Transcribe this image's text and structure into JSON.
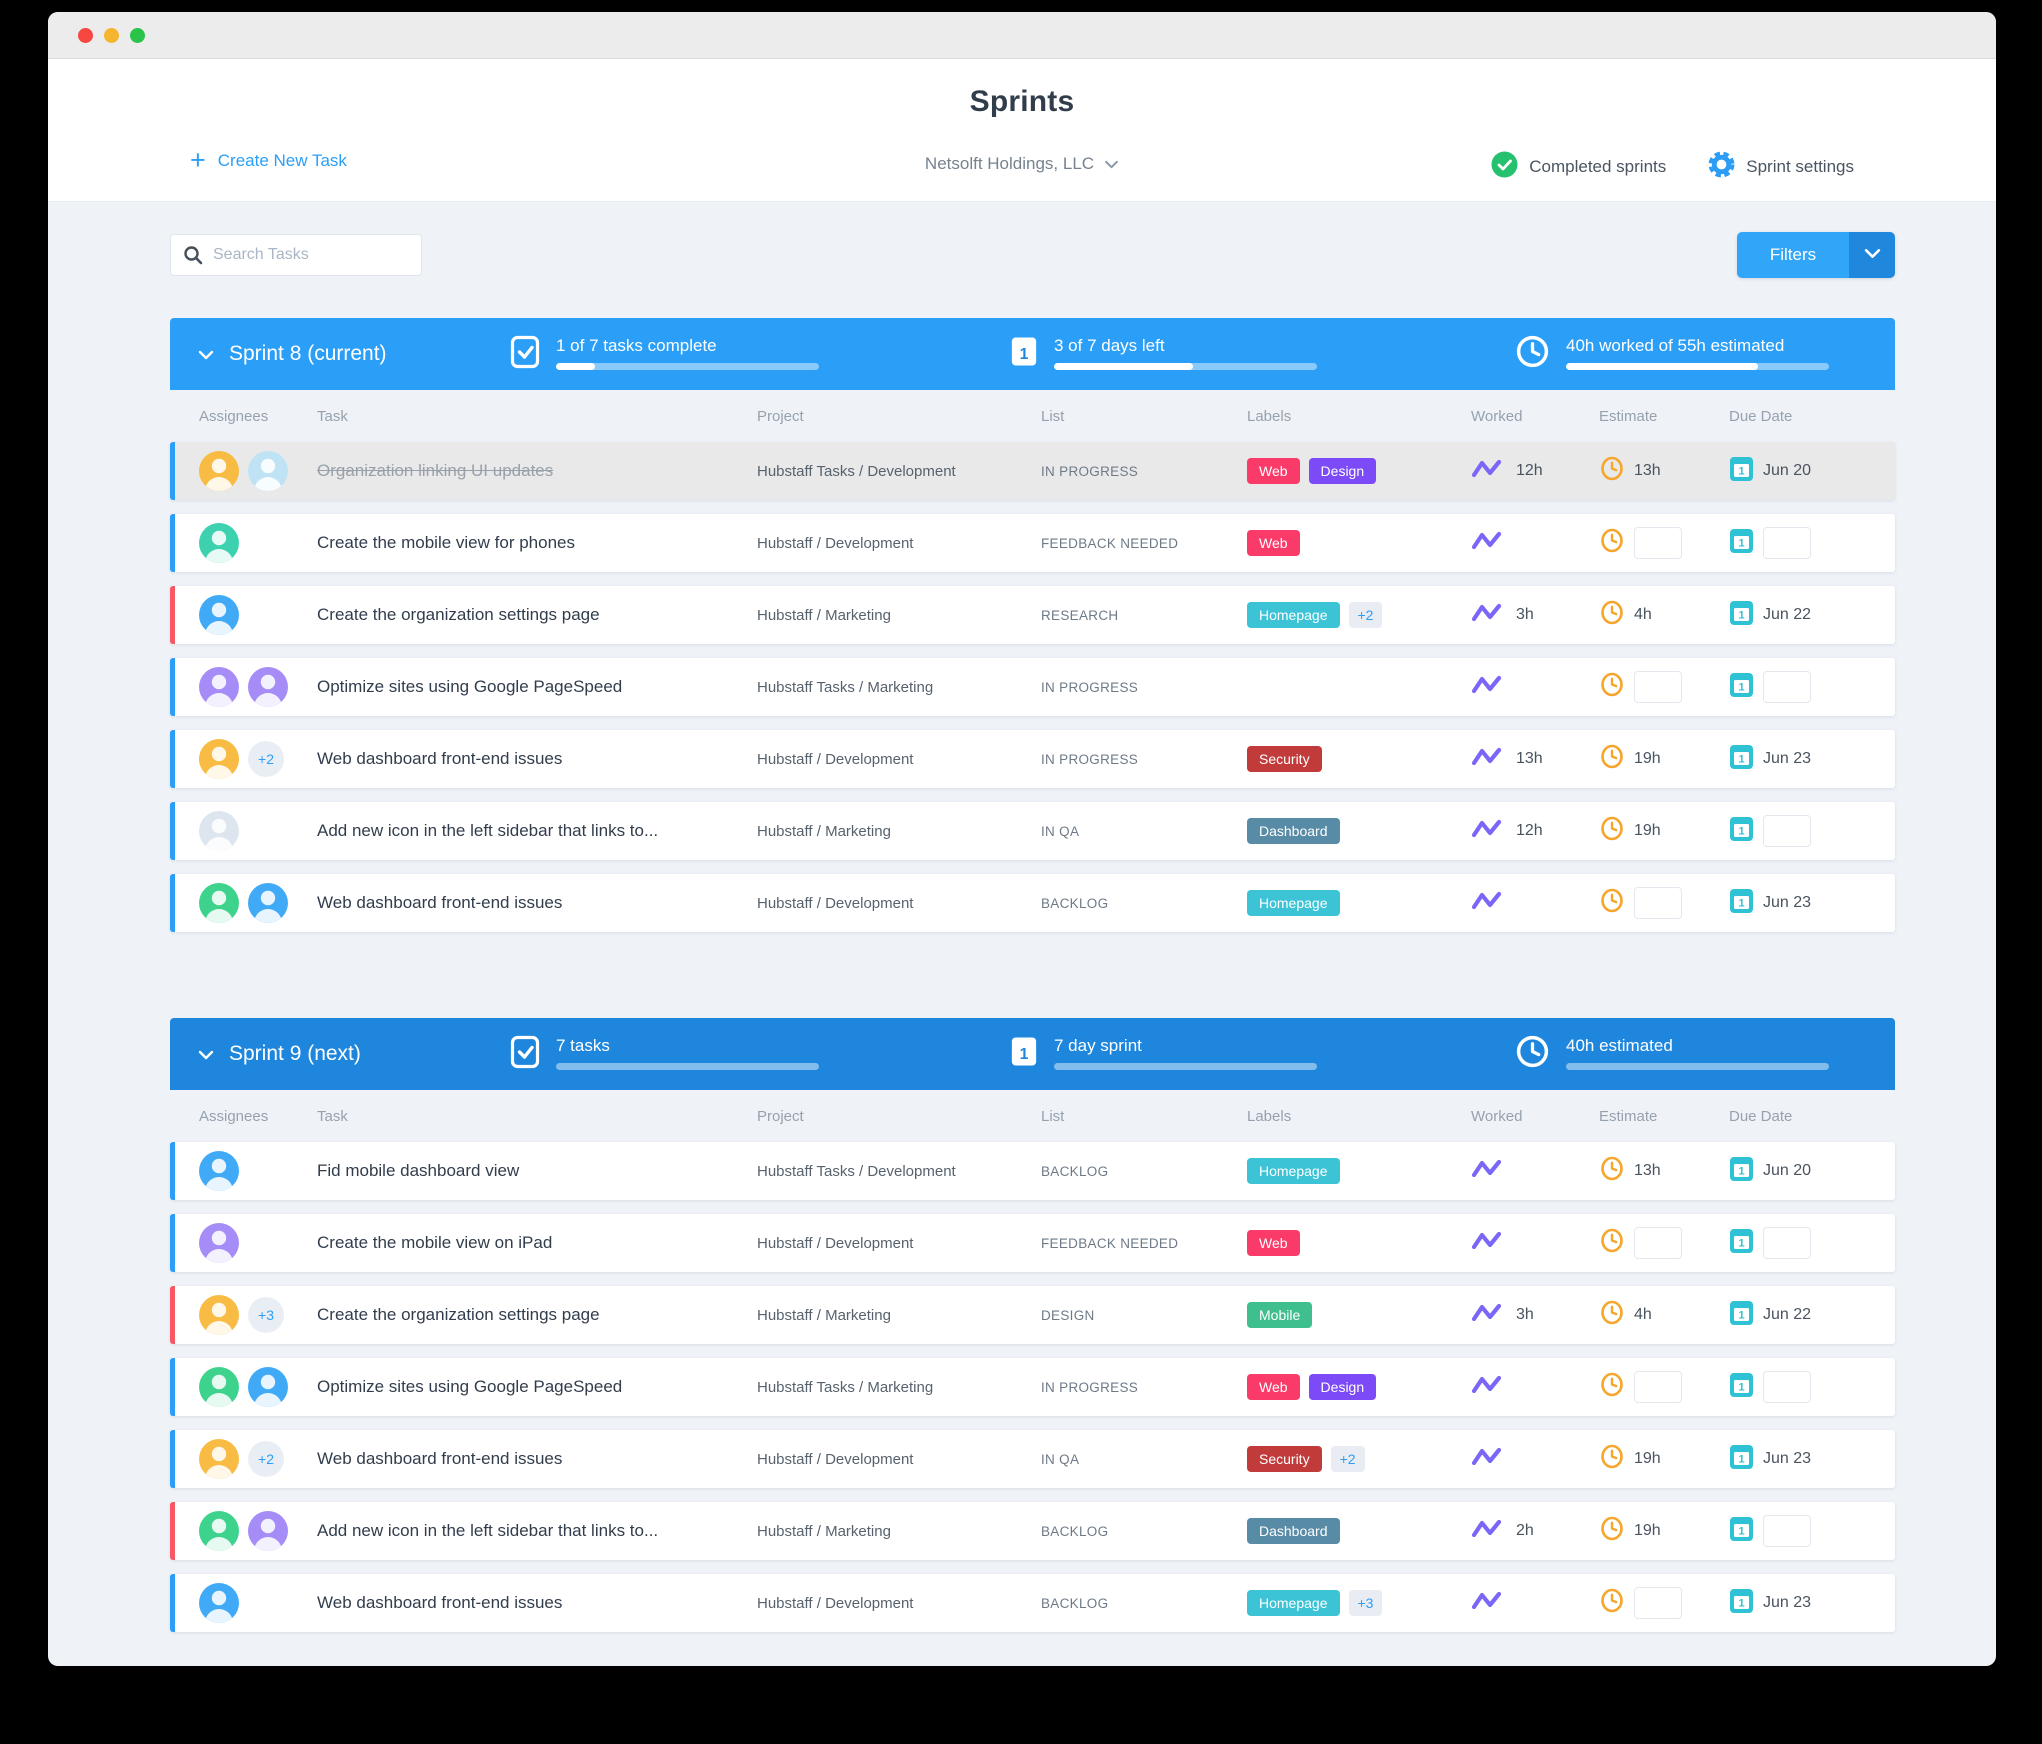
{
  "header": {
    "title": "Sprints",
    "org_name": "Netsolft Holdings, LLC",
    "create_task_label": "Create New Task",
    "completed_sprints_label": "Completed sprints",
    "sprint_settings_label": "Sprint settings"
  },
  "toolbar": {
    "search_placeholder": "Search Tasks",
    "filters_label": "Filters"
  },
  "columns": [
    "Assignees",
    "Task",
    "Project",
    "List",
    "Labels",
    "Worked",
    "Estimate",
    "Due Date"
  ],
  "accent_colors": {
    "blue": "#2b9ff7",
    "red": "#f65864"
  },
  "sprints": [
    {
      "title": "Sprint 8 (current)",
      "color": "#2b9ff7",
      "stats": [
        {
          "icon": "checkbox-icon",
          "text": "1 of 7 tasks complete",
          "progress": 15
        },
        {
          "icon": "calendar-icon",
          "text": "3 of 7 days left",
          "progress": 53
        },
        {
          "icon": "clock-icon",
          "text": "40h worked of 55h estimated",
          "progress": 73
        }
      ],
      "tasks": [
        {
          "completed": true,
          "accent": "#2b9ff7",
          "avatars": [
            "#f8bb43",
            "#bfe2f5"
          ],
          "extra_assignees": null,
          "task": "Organization linking UI updates",
          "project": "Hubstaff Tasks / Development",
          "list": "IN PROGRESS",
          "labels": [
            {
              "text": "Web",
              "color": "#fa3b69"
            },
            {
              "text": "Design",
              "color": "#7c4bf7"
            }
          ],
          "extra_labels": null,
          "worked": "12h",
          "estimate": "13h",
          "due": "Jun 20"
        },
        {
          "completed": false,
          "accent": "#2b9ff7",
          "avatars": [
            "#3ed1b0"
          ],
          "extra_assignees": null,
          "task": "Create the mobile view for phones",
          "project": "Hubstaff / Development",
          "list": "FEEDBACK NEEDED",
          "labels": [
            {
              "text": "Web",
              "color": "#fa3b69"
            }
          ],
          "extra_labels": null,
          "worked": "",
          "estimate": "",
          "due": ""
        },
        {
          "completed": false,
          "accent": "#f65864",
          "avatars": [
            "#41aaf7"
          ],
          "extra_assignees": null,
          "task": "Create the organization settings page",
          "project": "Hubstaff / Marketing",
          "list": "RESEARCH",
          "labels": [
            {
              "text": "Homepage",
              "color": "#3cc3d5"
            }
          ],
          "extra_labels": "+2",
          "worked": "3h",
          "estimate": "4h",
          "due": "Jun 22"
        },
        {
          "completed": false,
          "accent": "#2b9ff7",
          "avatars": [
            "#a58cf7",
            "#a58cf7"
          ],
          "extra_assignees": null,
          "task": "Optimize sites using Google PageSpeed",
          "project": "Hubstaff Tasks / Marketing",
          "list": "IN PROGRESS",
          "labels": [],
          "extra_labels": null,
          "worked": "",
          "estimate": "",
          "due": ""
        },
        {
          "completed": false,
          "accent": "#2b9ff7",
          "avatars": [
            "#f8bb43"
          ],
          "extra_assignees": "+2",
          "task": "Web dashboard front-end issues",
          "project": "Hubstaff / Development",
          "list": "IN PROGRESS",
          "labels": [
            {
              "text": "Security",
              "color": "#c23b3b"
            }
          ],
          "extra_labels": null,
          "worked": "13h",
          "estimate": "19h",
          "due": "Jun 23"
        },
        {
          "completed": false,
          "accent": "#2b9ff7",
          "avatars": [
            "#dde6ee"
          ],
          "extra_assignees": null,
          "task": "Add new icon in the left sidebar that links to...",
          "project": "Hubstaff / Marketing",
          "list": "IN QA",
          "labels": [
            {
              "text": "Dashboard",
              "color": "#578ba6"
            }
          ],
          "extra_labels": null,
          "worked": "12h",
          "estimate": "19h",
          "due": ""
        },
        {
          "completed": false,
          "accent": "#2b9ff7",
          "avatars": [
            "#3ed38c",
            "#41aaf7"
          ],
          "extra_assignees": null,
          "task": "Web dashboard front-end issues",
          "project": "Hubstaff / Development",
          "list": "BACKLOG",
          "labels": [
            {
              "text": "Homepage",
              "color": "#3cc3d5"
            }
          ],
          "extra_labels": null,
          "worked": "",
          "estimate": "",
          "due": "Jun 23"
        }
      ]
    },
    {
      "title": "Sprint 9 (next)",
      "color": "#1e87dd",
      "stats": [
        {
          "icon": "checkbox-icon",
          "text": "7 tasks",
          "progress": 0
        },
        {
          "icon": "calendar-icon",
          "text": "7 day sprint",
          "progress": 0
        },
        {
          "icon": "clock-icon",
          "text": "40h estimated",
          "progress": 0
        }
      ],
      "tasks": [
        {
          "completed": false,
          "accent": "#2b9ff7",
          "avatars": [
            "#41aaf7"
          ],
          "extra_assignees": null,
          "task": "Fid mobile dashboard view",
          "project": "Hubstaff Tasks / Development",
          "list": "BACKLOG",
          "labels": [
            {
              "text": "Homepage",
              "color": "#3cc3d5"
            }
          ],
          "extra_labels": null,
          "worked": "",
          "estimate": "13h",
          "due": "Jun 20"
        },
        {
          "completed": false,
          "accent": "#2b9ff7",
          "avatars": [
            "#a58cf7"
          ],
          "extra_assignees": null,
          "task": "Create the mobile view on iPad",
          "project": "Hubstaff / Development",
          "list": "FEEDBACK NEEDED",
          "labels": [
            {
              "text": "Web",
              "color": "#fa3b69"
            }
          ],
          "extra_labels": null,
          "worked": "",
          "estimate": "",
          "due": ""
        },
        {
          "completed": false,
          "accent": "#f65864",
          "avatars": [
            "#f8bb43"
          ],
          "extra_assignees": "+3",
          "task": "Create the organization settings page",
          "project": "Hubstaff / Marketing",
          "list": "DESIGN",
          "labels": [
            {
              "text": "Mobile",
              "color": "#3fbe8e"
            }
          ],
          "extra_labels": null,
          "worked": "3h",
          "estimate": "4h",
          "due": "Jun 22"
        },
        {
          "completed": false,
          "accent": "#2b9ff7",
          "avatars": [
            "#3ed38c",
            "#41aaf7"
          ],
          "extra_assignees": null,
          "task": "Optimize sites using Google PageSpeed",
          "project": "Hubstaff Tasks / Marketing",
          "list": "IN PROGRESS",
          "labels": [
            {
              "text": "Web",
              "color": "#fa3b69"
            },
            {
              "text": "Design",
              "color": "#7c4bf7"
            }
          ],
          "extra_labels": null,
          "worked": "",
          "estimate": "",
          "due": ""
        },
        {
          "completed": false,
          "accent": "#2b9ff7",
          "avatars": [
            "#f8bb43"
          ],
          "extra_assignees": "+2",
          "task": "Web dashboard front-end issues",
          "project": "Hubstaff / Development",
          "list": "IN QA",
          "labels": [
            {
              "text": "Security",
              "color": "#c23b3b"
            }
          ],
          "extra_labels": "+2",
          "worked": "",
          "estimate": "19h",
          "due": "Jun 23"
        },
        {
          "completed": false,
          "accent": "#f65864",
          "avatars": [
            "#3ed38c",
            "#a58cf7"
          ],
          "extra_assignees": null,
          "task": "Add new icon in the left sidebar that links to...",
          "project": "Hubstaff / Marketing",
          "list": "BACKLOG",
          "labels": [
            {
              "text": "Dashboard",
              "color": "#578ba6"
            }
          ],
          "extra_labels": null,
          "worked": "2h",
          "estimate": "19h",
          "due": ""
        },
        {
          "completed": false,
          "accent": "#2b9ff7",
          "avatars": [
            "#41aaf7"
          ],
          "extra_assignees": null,
          "task": "Web dashboard front-end issues",
          "project": "Hubstaff / Development",
          "list": "BACKLOG",
          "labels": [
            {
              "text": "Homepage",
              "color": "#3cc3d5"
            }
          ],
          "extra_labels": "+3",
          "worked": "",
          "estimate": "",
          "due": "Jun 23"
        }
      ]
    }
  ]
}
